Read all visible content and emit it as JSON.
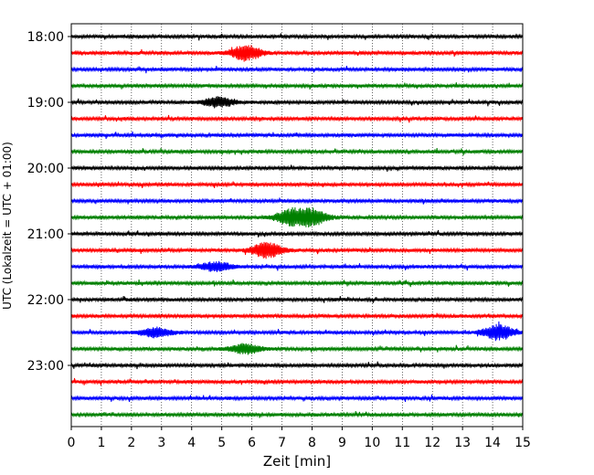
{
  "chart_data": {
    "type": "line",
    "subtype": "helicorder",
    "xlabel": "Zeit  [min]",
    "ylabel": "UTC (Lokalzeit = UTC + 01:00)",
    "xlim": [
      0,
      15
    ],
    "x_ticks": [
      "0",
      "1",
      "2",
      "3",
      "4",
      "5",
      "6",
      "7",
      "8",
      "9",
      "10",
      "11",
      "12",
      "13",
      "14",
      "15"
    ],
    "y_tick_labels": [
      "18:00",
      "19:00",
      "20:00",
      "21:00",
      "22:00",
      "23:00"
    ],
    "grid": "vertical dotted lines at each minute",
    "colors": [
      "#000000",
      "#ff0000",
      "#0000ff",
      "#008000"
    ],
    "trace_start_times": [
      "18:00",
      "18:15",
      "18:30",
      "18:45",
      "19:00",
      "19:15",
      "19:30",
      "19:45",
      "20:00",
      "20:15",
      "20:30",
      "20:45",
      "21:00",
      "21:15",
      "21:30",
      "21:45",
      "22:00",
      "22:15",
      "22:30",
      "22:45",
      "23:00",
      "23:15",
      "23:30",
      "23:45"
    ],
    "traces_per_hour": 4,
    "trace_duration_min": 15,
    "notable_events": [
      {
        "trace": "18:15",
        "at_min": 5.8,
        "amplitude": "large"
      },
      {
        "trace": "19:00",
        "at_min": 4.9,
        "amplitude": "medium"
      },
      {
        "trace": "20:45",
        "at_min": 7.3,
        "amplitude": "large"
      },
      {
        "trace": "20:45",
        "at_min": 8.0,
        "amplitude": "large"
      },
      {
        "trace": "21:15",
        "at_min": 6.5,
        "amplitude": "large"
      },
      {
        "trace": "21:30",
        "at_min": 4.8,
        "amplitude": "medium"
      },
      {
        "trace": "22:30",
        "at_min": 2.8,
        "amplitude": "medium"
      },
      {
        "trace": "22:30",
        "at_min": 14.2,
        "amplitude": "large"
      },
      {
        "trace": "22:45",
        "at_min": 5.8,
        "amplitude": "medium"
      }
    ]
  }
}
